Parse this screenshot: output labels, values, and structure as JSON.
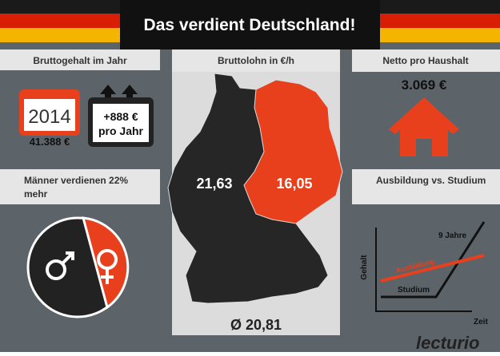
{
  "header": {
    "title": "Das verdient Deutschland!"
  },
  "salary": {
    "heading": "Bruttogehalt im Jahr",
    "year": "2014",
    "amount": "41.388 €",
    "increase": "+888 €",
    "increase_unit": "pro Jahr"
  },
  "wage": {
    "heading": "Bruttolohn in €/h",
    "west": "21,63",
    "east": "16,05",
    "average": "Ø 20,81"
  },
  "household": {
    "heading": "Netto pro Haushalt",
    "amount": "3.069 €"
  },
  "gender": {
    "heading": "Männer verdienen 22% mehr"
  },
  "education": {
    "heading": "Ausbildung vs. Studium",
    "years": "9 Jahre",
    "apprenticeship": "Ausbildung",
    "study": "Studium",
    "y_label": "Gehalt",
    "x_label": "Zeit"
  },
  "logo": "lecturio"
}
